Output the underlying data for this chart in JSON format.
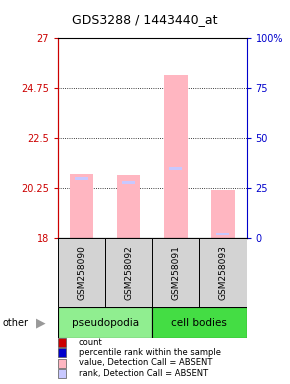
{
  "title": "GDS3288 / 1443440_at",
  "samples": [
    "GSM258090",
    "GSM258092",
    "GSM258091",
    "GSM258093"
  ],
  "ylim_left": [
    18,
    27
  ],
  "ylim_right": [
    0,
    100
  ],
  "yticks_left": [
    18,
    20.25,
    22.5,
    24.75,
    27
  ],
  "yticks_right": [
    0,
    25,
    50,
    75,
    100
  ],
  "bar_values": [
    20.9,
    20.85,
    25.35,
    20.15
  ],
  "rank_values": [
    30,
    28,
    35,
    2
  ],
  "bar_color_absent": "#ffb6c1",
  "rank_color_absent": "#c8c8ff",
  "left_axis_color": "#cc0000",
  "right_axis_color": "#0000cc",
  "legend_items": [
    {
      "label": "count",
      "color": "#cc0000"
    },
    {
      "label": "percentile rank within the sample",
      "color": "#0000cc"
    },
    {
      "label": "value, Detection Call = ABSENT",
      "color": "#ffb6c1"
    },
    {
      "label": "rank, Detection Call = ABSENT",
      "color": "#c8c8ff"
    }
  ],
  "sample_box_color": "#d3d3d3",
  "groups_info": [
    {
      "label": "pseudopodia",
      "start": 0,
      "end": 1,
      "color": "#90ee90"
    },
    {
      "label": "cell bodies",
      "start": 2,
      "end": 3,
      "color": "#44dd44"
    }
  ]
}
